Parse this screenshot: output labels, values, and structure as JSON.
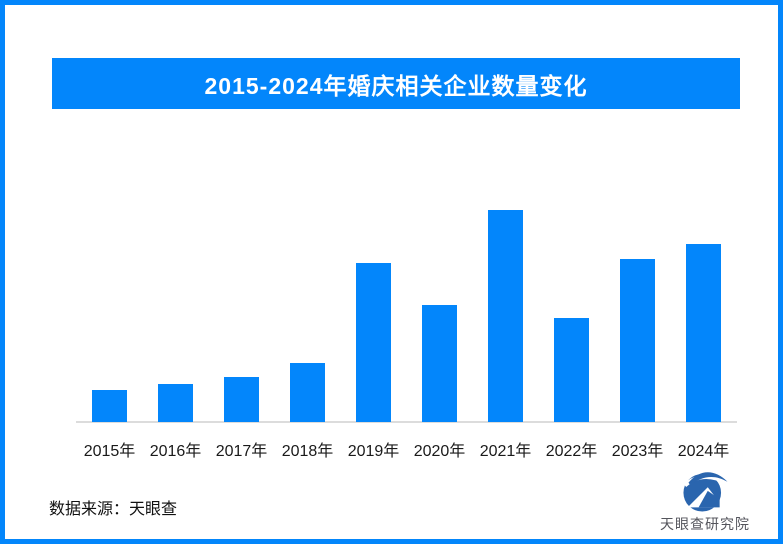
{
  "page": {
    "border_color": "#0386FB",
    "background_color": "#FFFFFF"
  },
  "header": {
    "title": "2015-2024年婚庆相关企业数量变化",
    "banner_color": "#0386FB",
    "title_color": "#FFFFFF"
  },
  "chart_data": {
    "type": "bar",
    "title": "2015-2024年婚庆相关企业数量变化",
    "categories": [
      "2015年",
      "2016年",
      "2017年",
      "2018年",
      "2019年",
      "2020年",
      "2021年",
      "2022年",
      "2023年",
      "2024年"
    ],
    "values": [
      15,
      18,
      21,
      28,
      75,
      55,
      100,
      49,
      77,
      84
    ],
    "values_note": "estimated relative heights as % of tallest bar (2021); no numeric data labels, y-axis or gridlines are shown in the image",
    "xlabel": "",
    "ylabel": "",
    "ylim": [
      0,
      100
    ],
    "grid": false,
    "legend": false,
    "bar_color": "#0386FB",
    "axis_line_color": "#DCDCDC"
  },
  "footer": {
    "source_text": "数据来源：天眼查",
    "logo_text": "天眼查研究院",
    "logo_color": "#2A65AE"
  }
}
